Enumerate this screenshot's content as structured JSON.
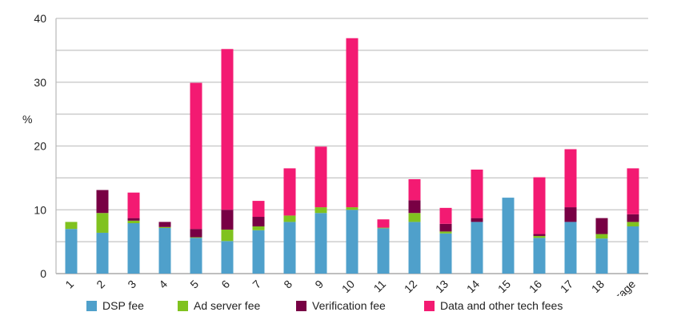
{
  "chart_data": {
    "type": "bar",
    "stacked": true,
    "ylabel": "%",
    "ylim": [
      0,
      40
    ],
    "yticks": [
      0,
      10,
      20,
      30,
      40
    ],
    "grid": true,
    "legend_position": "bottom",
    "categories": [
      "1",
      "2",
      "3",
      "4",
      "5",
      "6",
      "7",
      "8",
      "9",
      "10",
      "11",
      "12",
      "13",
      "14",
      "15",
      "16",
      "17",
      "18",
      "Average"
    ],
    "series": [
      {
        "name": "DSP fee",
        "color": "#4fa0cb",
        "values": [
          7.0,
          6.4,
          7.9,
          7.15,
          5.6,
          5.1,
          6.8,
          8.1,
          9.5,
          10.0,
          7.1,
          8.1,
          6.3,
          8.1,
          11.9,
          5.6,
          8.1,
          5.5,
          7.4
        ]
      },
      {
        "name": "Ad server fee",
        "color": "#80c21f",
        "values": [
          1.1,
          3.1,
          0.4,
          0.15,
          0.1,
          1.8,
          0.6,
          1.0,
          0.9,
          0.4,
          0.1,
          1.4,
          0.3,
          0,
          0,
          0.3,
          0,
          0.7,
          0.7
        ]
      },
      {
        "name": "Verification fee",
        "color": "#780044",
        "values": [
          0,
          3.6,
          0.4,
          0.8,
          1.3,
          3.1,
          1.5,
          0,
          0,
          0,
          0,
          2.0,
          1.2,
          0.6,
          0,
          0.3,
          2.3,
          2.5,
          1.2
        ]
      },
      {
        "name": "Data and other tech fees",
        "color": "#f31a72",
        "values": [
          0,
          0,
          4.0,
          0,
          22.9,
          25.2,
          2.5,
          7.4,
          9.5,
          26.5,
          1.3,
          3.3,
          2.5,
          7.6,
          0,
          8.9,
          9.1,
          0,
          7.2
        ]
      }
    ]
  }
}
